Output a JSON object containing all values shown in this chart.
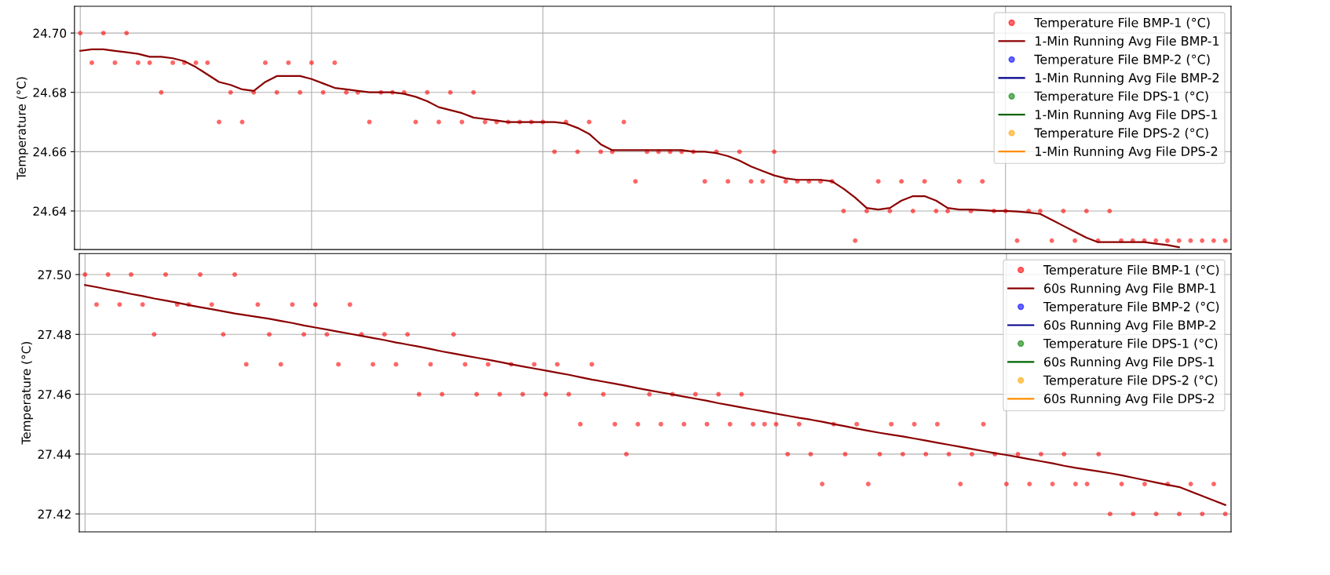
{
  "chart_data": [
    {
      "type": "line",
      "ylabel": "Temperature (°C)",
      "ylim": [
        24.627,
        24.709
      ],
      "yticks": [
        {
          "value": 24.64,
          "label": "24.64"
        },
        {
          "value": 24.66,
          "label": "24.66"
        },
        {
          "value": 24.68,
          "label": "24.68"
        },
        {
          "value": 24.7,
          "label": "24.70"
        }
      ],
      "grid": true,
      "legend": "top right",
      "tick_labels": "y",
      "categories": [
        null,
        null,
        null,
        null,
        null,
        null,
        null,
        null,
        null,
        null,
        null,
        null,
        null,
        null,
        null,
        null,
        null,
        null,
        null,
        null,
        null,
        null,
        null,
        null,
        null,
        null,
        null,
        null,
        null,
        null,
        null,
        null,
        null,
        null,
        null,
        null,
        null,
        null,
        null,
        null,
        null,
        null,
        null,
        null,
        null,
        null,
        null,
        null,
        null,
        null,
        null,
        null,
        null,
        null,
        null,
        null,
        null,
        null,
        null,
        null,
        null,
        null,
        null,
        null,
        null,
        null,
        null,
        null,
        null,
        null,
        null,
        null,
        null,
        null,
        null,
        null,
        null,
        null,
        null,
        null,
        null,
        null,
        null,
        null,
        null,
        null,
        null,
        null,
        null,
        null,
        null,
        null,
        null,
        null,
        null,
        null,
        null,
        null,
        null,
        null
      ],
      "series": [
        {
          "name": "Temperature File BMP-1 (°C)",
          "type": "scatter",
          "marker": "circle",
          "color": "#ff0000",
          "values": [
            24.7,
            24.69,
            24.7,
            24.69,
            24.7,
            24.69,
            24.69,
            24.68,
            24.69,
            24.69,
            24.69,
            24.69,
            24.67,
            24.68,
            24.67,
            24.68,
            24.69,
            24.68,
            24.69,
            24.68,
            24.69,
            24.68,
            24.69,
            24.68,
            24.68,
            24.67,
            24.68,
            24.68,
            24.68,
            24.67,
            24.68,
            24.67,
            24.68,
            24.67,
            24.68,
            24.67,
            24.67,
            24.67,
            24.67,
            24.67,
            24.67,
            24.66,
            24.67,
            24.66,
            24.67,
            24.66,
            24.66,
            24.67,
            24.65,
            24.66,
            24.66,
            24.66,
            24.66,
            24.66,
            24.65,
            24.66,
            24.65,
            24.66,
            24.65,
            24.65,
            24.66,
            24.65,
            24.65,
            24.65,
            24.65,
            24.65,
            24.64,
            24.63,
            24.64,
            24.65,
            24.64,
            24.65,
            24.64,
            24.65,
            24.64,
            24.64,
            24.65,
            24.64,
            24.65,
            24.64,
            24.64,
            24.63,
            24.64,
            24.64,
            24.63,
            24.64,
            24.63,
            24.64,
            24.63,
            24.64,
            24.63,
            24.63,
            24.63,
            24.63,
            24.63,
            24.63,
            24.63,
            24.63,
            24.63,
            24.63
          ]
        },
        {
          "name": "1-Min Running Avg File BMP-1",
          "marker": "none",
          "line_style": "solid",
          "color": "#8b0000",
          "values": [
            24.694,
            24.6945,
            24.6945,
            24.694,
            24.6935,
            24.693,
            24.692,
            24.692,
            24.6915,
            24.6905,
            24.6885,
            24.686,
            24.6835,
            24.6825,
            24.681,
            24.6805,
            24.6835,
            24.6855,
            24.6855,
            24.6855,
            24.6845,
            24.683,
            24.6815,
            24.681,
            24.6805,
            24.68,
            24.68,
            24.68,
            24.6795,
            24.6785,
            24.677,
            24.675,
            24.674,
            24.673,
            24.6715,
            24.671,
            24.6705,
            24.67,
            24.67,
            24.67,
            24.67,
            24.67,
            24.6695,
            24.668,
            24.666,
            24.6625,
            24.6605,
            24.6605,
            24.6605,
            24.6605,
            24.6605,
            24.6605,
            24.6605,
            24.66,
            24.66,
            24.6595,
            24.6585,
            24.657,
            24.655,
            24.6535,
            24.652,
            24.651,
            24.6505,
            24.6505,
            24.6505,
            24.65,
            24.6475,
            24.6445,
            24.641,
            24.6405,
            24.641,
            24.6435,
            24.645,
            24.645,
            24.6435,
            24.641,
            24.6405,
            24.6405,
            24.6403,
            24.64,
            24.64,
            24.6398,
            24.6395,
            24.639,
            24.637,
            24.635,
            24.633,
            24.631,
            24.6295,
            24.6295,
            24.6295,
            24.6295,
            24.6295,
            24.629,
            24.6285,
            24.6278,
            null,
            null,
            null,
            null
          ]
        },
        {
          "name": "Temperature File BMP-2 (°C)",
          "type": "scatter",
          "marker": "circle",
          "color": "#0000ff",
          "values": [
            null,
            null,
            null,
            null,
            null,
            null,
            null,
            null,
            null,
            null,
            null,
            null,
            null,
            null,
            null,
            null,
            null,
            null,
            null,
            null,
            null,
            null,
            null,
            null,
            null,
            null,
            null,
            null,
            null,
            null,
            null,
            null,
            null,
            null,
            null,
            null,
            null,
            null,
            null,
            null,
            null,
            null,
            null,
            null,
            null,
            null,
            null,
            null,
            null,
            null,
            null,
            null,
            null,
            null,
            null,
            null,
            null,
            null,
            null,
            null,
            null,
            null,
            null,
            null,
            null,
            null,
            null,
            null,
            null,
            null,
            null,
            null,
            null,
            null,
            null,
            null,
            null,
            null,
            null,
            null,
            null,
            null,
            null,
            null,
            null,
            null,
            null,
            null,
            null,
            null,
            null,
            null,
            null,
            null,
            null,
            null,
            null,
            null,
            null,
            null
          ]
        },
        {
          "name": "1-Min Running Avg File BMP-2",
          "marker": "none",
          "line_style": "solid",
          "color": "#00008b",
          "values": [
            null,
            null,
            null,
            null,
            null,
            null,
            null,
            null,
            null,
            null,
            null,
            null,
            null,
            null,
            null,
            null,
            null,
            null,
            null,
            null,
            null,
            null,
            null,
            null,
            null,
            null,
            null,
            null,
            null,
            null,
            null,
            null,
            null,
            null,
            null,
            null,
            null,
            null,
            null,
            null,
            null,
            null,
            null,
            null,
            null,
            null,
            null,
            null,
            null,
            null,
            null,
            null,
            null,
            null,
            null,
            null,
            null,
            null,
            null,
            null,
            null,
            null,
            null,
            null,
            null,
            null,
            null,
            null,
            null,
            null,
            null,
            null,
            null,
            null,
            null,
            null,
            null,
            null,
            null,
            null,
            null,
            null,
            null,
            null,
            null,
            null,
            null,
            null,
            null,
            null,
            null,
            null,
            null,
            null,
            null,
            null,
            null,
            null,
            null,
            null
          ]
        },
        {
          "name": "Temperature File DPS-1 (°C)",
          "type": "scatter",
          "marker": "circle",
          "color": "#008000",
          "values": [
            null,
            null,
            null,
            null,
            null,
            null,
            null,
            null,
            null,
            null,
            null,
            null,
            null,
            null,
            null,
            null,
            null,
            null,
            null,
            null,
            null,
            null,
            null,
            null,
            null,
            null,
            null,
            null,
            null,
            null,
            null,
            null,
            null,
            null,
            null,
            null,
            null,
            null,
            null,
            null,
            null,
            null,
            null,
            null,
            null,
            null,
            null,
            null,
            null,
            null,
            null,
            null,
            null,
            null,
            null,
            null,
            null,
            null,
            null,
            null,
            null,
            null,
            null,
            null,
            null,
            null,
            null,
            null,
            null,
            null,
            null,
            null,
            null,
            null,
            null,
            null,
            null,
            null,
            null,
            null,
            null,
            null,
            null,
            null,
            null,
            null,
            null,
            null,
            null,
            null,
            null,
            null,
            null,
            null,
            null,
            null,
            null,
            null,
            null,
            null
          ]
        },
        {
          "name": "1-Min Running Avg File DPS-1",
          "marker": "none",
          "line_style": "solid",
          "color": "#006400",
          "values": [
            null,
            null,
            null,
            null,
            null,
            null,
            null,
            null,
            null,
            null,
            null,
            null,
            null,
            null,
            null,
            null,
            null,
            null,
            null,
            null,
            null,
            null,
            null,
            null,
            null,
            null,
            null,
            null,
            null,
            null,
            null,
            null,
            null,
            null,
            null,
            null,
            null,
            null,
            null,
            null,
            null,
            null,
            null,
            null,
            null,
            null,
            null,
            null,
            null,
            null,
            null,
            null,
            null,
            null,
            null,
            null,
            null,
            null,
            null,
            null,
            null,
            null,
            null,
            null,
            null,
            null,
            null,
            null,
            null,
            null,
            null,
            null,
            null,
            null,
            null,
            null,
            null,
            null,
            null,
            null,
            null,
            null,
            null,
            null,
            null,
            null,
            null,
            null,
            null,
            null,
            null,
            null,
            null,
            null,
            null,
            null,
            null,
            null,
            null,
            null
          ]
        },
        {
          "name": "Temperature File DPS-2 (°C)",
          "type": "scatter",
          "marker": "circle",
          "color": "#ffa500",
          "values": [
            null,
            null,
            null,
            null,
            null,
            null,
            null,
            null,
            null,
            null,
            null,
            null,
            null,
            null,
            null,
            null,
            null,
            null,
            null,
            null,
            null,
            null,
            null,
            null,
            null,
            null,
            null,
            null,
            null,
            null,
            null,
            null,
            null,
            null,
            null,
            null,
            null,
            null,
            null,
            null,
            null,
            null,
            null,
            null,
            null,
            null,
            null,
            null,
            null,
            null,
            null,
            null,
            null,
            null,
            null,
            null,
            null,
            null,
            null,
            null,
            null,
            null,
            null,
            null,
            null,
            null,
            null,
            null,
            null,
            null,
            null,
            null,
            null,
            null,
            null,
            null,
            null,
            null,
            null,
            null,
            null,
            null,
            null,
            null,
            null,
            null,
            null,
            null,
            null,
            null,
            null,
            null,
            null,
            null,
            null,
            null,
            null,
            null,
            null,
            null
          ]
        },
        {
          "name": "1-Min Running Avg File DPS-2",
          "marker": "none",
          "line_style": "solid",
          "color": "#ff8c00",
          "values": [
            null,
            null,
            null,
            null,
            null,
            null,
            null,
            null,
            null,
            null,
            null,
            null,
            null,
            null,
            null,
            null,
            null,
            null,
            null,
            null,
            null,
            null,
            null,
            null,
            null,
            null,
            null,
            null,
            null,
            null,
            null,
            null,
            null,
            null,
            null,
            null,
            null,
            null,
            null,
            null,
            null,
            null,
            null,
            null,
            null,
            null,
            null,
            null,
            null,
            null,
            null,
            null,
            null,
            null,
            null,
            null,
            null,
            null,
            null,
            null,
            null,
            null,
            null,
            null,
            null,
            null,
            null,
            null,
            null,
            null,
            null,
            null,
            null,
            null,
            null,
            null,
            null,
            null,
            null,
            null,
            null,
            null,
            null,
            null,
            null,
            null,
            null,
            null,
            null,
            null,
            null,
            null,
            null,
            null,
            null,
            null,
            null,
            null,
            null,
            null
          ]
        }
      ]
    },
    {
      "type": "line",
      "ylabel": "Temperature (°C)",
      "ylim": [
        27.414,
        27.507
      ],
      "yticks": [
        {
          "value": 27.42,
          "label": "27.42"
        },
        {
          "value": 27.44,
          "label": "27.44"
        },
        {
          "value": 27.46,
          "label": "27.46"
        },
        {
          "value": 27.48,
          "label": "27.48"
        },
        {
          "value": 27.5,
          "label": "27.50"
        }
      ],
      "grid": true,
      "legend": "top right",
      "tick_labels": "y",
      "categories": [
        null,
        null,
        null,
        null,
        null,
        null,
        null,
        null,
        null,
        null,
        null,
        null,
        null,
        null,
        null,
        null,
        null,
        null,
        null,
        null,
        null,
        null,
        null,
        null,
        null,
        null,
        null,
        null,
        null,
        null,
        null,
        null,
        null,
        null,
        null,
        null,
        null,
        null,
        null,
        null,
        null,
        null,
        null,
        null,
        null,
        null,
        null,
        null,
        null,
        null,
        null,
        null,
        null,
        null,
        null,
        null,
        null,
        null,
        null,
        null,
        null,
        null,
        null,
        null,
        null,
        null,
        null,
        null,
        null,
        null,
        null,
        null,
        null,
        null,
        null,
        null,
        null,
        null,
        null,
        null,
        null,
        null,
        null,
        null,
        null,
        null,
        null,
        null,
        null,
        null,
        null,
        null,
        null,
        null,
        null,
        null,
        null,
        null,
        null,
        null
      ],
      "series": [
        {
          "name": "Temperature File BMP-1 (°C)",
          "type": "scatter",
          "marker": "circle",
          "color": "#ff0000",
          "values": [
            27.5,
            27.49,
            27.5,
            27.49,
            27.5,
            27.49,
            27.48,
            27.5,
            27.49,
            27.49,
            27.5,
            27.49,
            27.48,
            27.5,
            27.47,
            27.49,
            27.48,
            27.47,
            27.49,
            27.48,
            27.49,
            27.48,
            27.47,
            27.49,
            27.48,
            27.47,
            27.48,
            27.47,
            27.48,
            27.46,
            27.47,
            27.46,
            27.48,
            27.47,
            27.46,
            27.47,
            27.46,
            27.47,
            27.46,
            27.47,
            27.46,
            27.47,
            27.46,
            27.45,
            27.47,
            27.46,
            27.45,
            27.44,
            27.45,
            27.46,
            27.45,
            27.46,
            27.45,
            27.46,
            27.45,
            27.46,
            27.45,
            27.46,
            27.45,
            27.45,
            27.45,
            27.44,
            27.45,
            27.44,
            27.43,
            27.45,
            27.44,
            27.45,
            27.43,
            27.44,
            27.45,
            27.44,
            27.45,
            27.44,
            27.45,
            27.44,
            27.43,
            27.44,
            27.45,
            27.44,
            27.43,
            27.44,
            27.43,
            27.44,
            27.43,
            27.44,
            27.43,
            27.43,
            27.44,
            27.42,
            27.43,
            27.42,
            27.43,
            27.42,
            27.43,
            27.42,
            27.43,
            27.42,
            27.43,
            27.42
          ]
        },
        {
          "name": "60s Running Avg File BMP-1",
          "marker": "none",
          "line_style": "solid",
          "color": "#8b0000",
          "values": [
            27.4965,
            27.4958,
            27.495,
            27.4943,
            27.4935,
            27.4928,
            27.492,
            27.4913,
            27.4906,
            27.4898,
            27.4891,
            27.4884,
            27.4877,
            27.487,
            27.4864,
            27.4858,
            27.4852,
            27.4845,
            27.4838,
            27.483,
            27.4823,
            27.4816,
            27.4809,
            27.4802,
            27.4795,
            27.4788,
            27.4781,
            27.4773,
            27.4766,
            27.4759,
            27.4751,
            27.4743,
            27.4736,
            27.4729,
            27.4722,
            27.4715,
            27.4708,
            27.47,
            27.4693,
            27.4686,
            27.4679,
            27.4672,
            27.4665,
            27.4657,
            27.4649,
            27.4642,
            27.4635,
            27.4628,
            27.462,
            27.4613,
            27.4606,
            27.4599,
            27.4592,
            27.4585,
            27.4578,
            27.457,
            27.4563,
            27.4556,
            27.4549,
            27.4542,
            27.4535,
            27.4528,
            27.4521,
            27.4515,
            27.4508,
            27.45,
            27.4493,
            27.4485,
            27.4478,
            27.4471,
            27.4465,
            27.4459,
            27.4452,
            27.4445,
            27.4438,
            27.4431,
            27.4424,
            27.4417,
            27.441,
            27.4403,
            27.4397,
            27.439,
            27.4383,
            27.4376,
            27.4369,
            27.4361,
            27.4354,
            27.4348,
            27.4342,
            27.4336,
            27.4329,
            27.4321,
            27.4313,
            27.4305,
            27.4297,
            27.429,
            27.4275,
            27.426,
            27.4245,
            27.423
          ]
        },
        {
          "name": "Temperature File BMP-2 (°C)",
          "type": "scatter",
          "marker": "circle",
          "color": "#0000ff",
          "values": [
            null,
            null,
            null,
            null,
            null,
            null,
            null,
            null,
            null,
            null,
            null,
            null,
            null,
            null,
            null,
            null,
            null,
            null,
            null,
            null,
            null,
            null,
            null,
            null,
            null,
            null,
            null,
            null,
            null,
            null,
            null,
            null,
            null,
            null,
            null,
            null,
            null,
            null,
            null,
            null,
            null,
            null,
            null,
            null,
            null,
            null,
            null,
            null,
            null,
            null,
            null,
            null,
            null,
            null,
            null,
            null,
            null,
            null,
            null,
            null,
            null,
            null,
            null,
            null,
            null,
            null,
            null,
            null,
            null,
            null,
            null,
            null,
            null,
            null,
            null,
            null,
            null,
            null,
            null,
            null,
            null,
            null,
            null,
            null,
            null,
            null,
            null,
            null,
            null,
            null,
            null,
            null,
            null,
            null,
            null,
            null,
            null,
            null,
            null,
            null
          ]
        },
        {
          "name": "60s Running Avg File BMP-2",
          "marker": "none",
          "line_style": "solid",
          "color": "#00008b",
          "values": [
            null,
            null,
            null,
            null,
            null,
            null,
            null,
            null,
            null,
            null,
            null,
            null,
            null,
            null,
            null,
            null,
            null,
            null,
            null,
            null,
            null,
            null,
            null,
            null,
            null,
            null,
            null,
            null,
            null,
            null,
            null,
            null,
            null,
            null,
            null,
            null,
            null,
            null,
            null,
            null,
            null,
            null,
            null,
            null,
            null,
            null,
            null,
            null,
            null,
            null,
            null,
            null,
            null,
            null,
            null,
            null,
            null,
            null,
            null,
            null,
            null,
            null,
            null,
            null,
            null,
            null,
            null,
            null,
            null,
            null,
            null,
            null,
            null,
            null,
            null,
            null,
            null,
            null,
            null,
            null,
            null,
            null,
            null,
            null,
            null,
            null,
            null,
            null,
            null,
            null,
            null,
            null,
            null,
            null,
            null,
            null,
            null,
            null,
            null,
            null
          ]
        },
        {
          "name": "Temperature File DPS-1 (°C)",
          "type": "scatter",
          "marker": "circle",
          "color": "#008000",
          "values": [
            null,
            null,
            null,
            null,
            null,
            null,
            null,
            null,
            null,
            null,
            null,
            null,
            null,
            null,
            null,
            null,
            null,
            null,
            null,
            null,
            null,
            null,
            null,
            null,
            null,
            null,
            null,
            null,
            null,
            null,
            null,
            null,
            null,
            null,
            null,
            null,
            null,
            null,
            null,
            null,
            null,
            null,
            null,
            null,
            null,
            null,
            null,
            null,
            null,
            null,
            null,
            null,
            null,
            null,
            null,
            null,
            null,
            null,
            null,
            null,
            null,
            null,
            null,
            null,
            null,
            null,
            null,
            null,
            null,
            null,
            null,
            null,
            null,
            null,
            null,
            null,
            null,
            null,
            null,
            null,
            null,
            null,
            null,
            null,
            null,
            null,
            null,
            null,
            null,
            null,
            null,
            null,
            null,
            null,
            null,
            null,
            null,
            null,
            null,
            null
          ]
        },
        {
          "name": "60s Running Avg File DPS-1",
          "marker": "none",
          "line_style": "solid",
          "color": "#006400",
          "values": [
            null,
            null,
            null,
            null,
            null,
            null,
            null,
            null,
            null,
            null,
            null,
            null,
            null,
            null,
            null,
            null,
            null,
            null,
            null,
            null,
            null,
            null,
            null,
            null,
            null,
            null,
            null,
            null,
            null,
            null,
            null,
            null,
            null,
            null,
            null,
            null,
            null,
            null,
            null,
            null,
            null,
            null,
            null,
            null,
            null,
            null,
            null,
            null,
            null,
            null,
            null,
            null,
            null,
            null,
            null,
            null,
            null,
            null,
            null,
            null,
            null,
            null,
            null,
            null,
            null,
            null,
            null,
            null,
            null,
            null,
            null,
            null,
            null,
            null,
            null,
            null,
            null,
            null,
            null,
            null,
            null,
            null,
            null,
            null,
            null,
            null,
            null,
            null,
            null,
            null,
            null,
            null,
            null,
            null,
            null,
            null,
            null,
            null,
            null,
            null
          ]
        },
        {
          "name": "Temperature File DPS-2 (°C)",
          "type": "scatter",
          "marker": "circle",
          "color": "#ffa500",
          "values": [
            null,
            null,
            null,
            null,
            null,
            null,
            null,
            null,
            null,
            null,
            null,
            null,
            null,
            null,
            null,
            null,
            null,
            null,
            null,
            null,
            null,
            null,
            null,
            null,
            null,
            null,
            null,
            null,
            null,
            null,
            null,
            null,
            null,
            null,
            null,
            null,
            null,
            null,
            null,
            null,
            null,
            null,
            null,
            null,
            null,
            null,
            null,
            null,
            null,
            null,
            null,
            null,
            null,
            null,
            null,
            null,
            null,
            null,
            null,
            null,
            null,
            null,
            null,
            null,
            null,
            null,
            null,
            null,
            null,
            null,
            null,
            null,
            null,
            null,
            null,
            null,
            null,
            null,
            null,
            null,
            null,
            null,
            null,
            null,
            null,
            null,
            null,
            null,
            null,
            null,
            null,
            null,
            null,
            null,
            null,
            null,
            null,
            null,
            null,
            null
          ]
        },
        {
          "name": "60s Running Avg File DPS-2",
          "marker": "none",
          "line_style": "solid",
          "color": "#ff8c00",
          "values": [
            null,
            null,
            null,
            null,
            null,
            null,
            null,
            null,
            null,
            null,
            null,
            null,
            null,
            null,
            null,
            null,
            null,
            null,
            null,
            null,
            null,
            null,
            null,
            null,
            null,
            null,
            null,
            null,
            null,
            null,
            null,
            null,
            null,
            null,
            null,
            null,
            null,
            null,
            null,
            null,
            null,
            null,
            null,
            null,
            null,
            null,
            null,
            null,
            null,
            null,
            null,
            null,
            null,
            null,
            null,
            null,
            null,
            null,
            null,
            null,
            null,
            null,
            null,
            null,
            null,
            null,
            null,
            null,
            null,
            null,
            null,
            null,
            null,
            null,
            null,
            null,
            null,
            null,
            null,
            null,
            null,
            null,
            null,
            null,
            null,
            null,
            null,
            null,
            null,
            null,
            null,
            null,
            null,
            null,
            null,
            null,
            null,
            null,
            null,
            null
          ]
        }
      ]
    }
  ]
}
